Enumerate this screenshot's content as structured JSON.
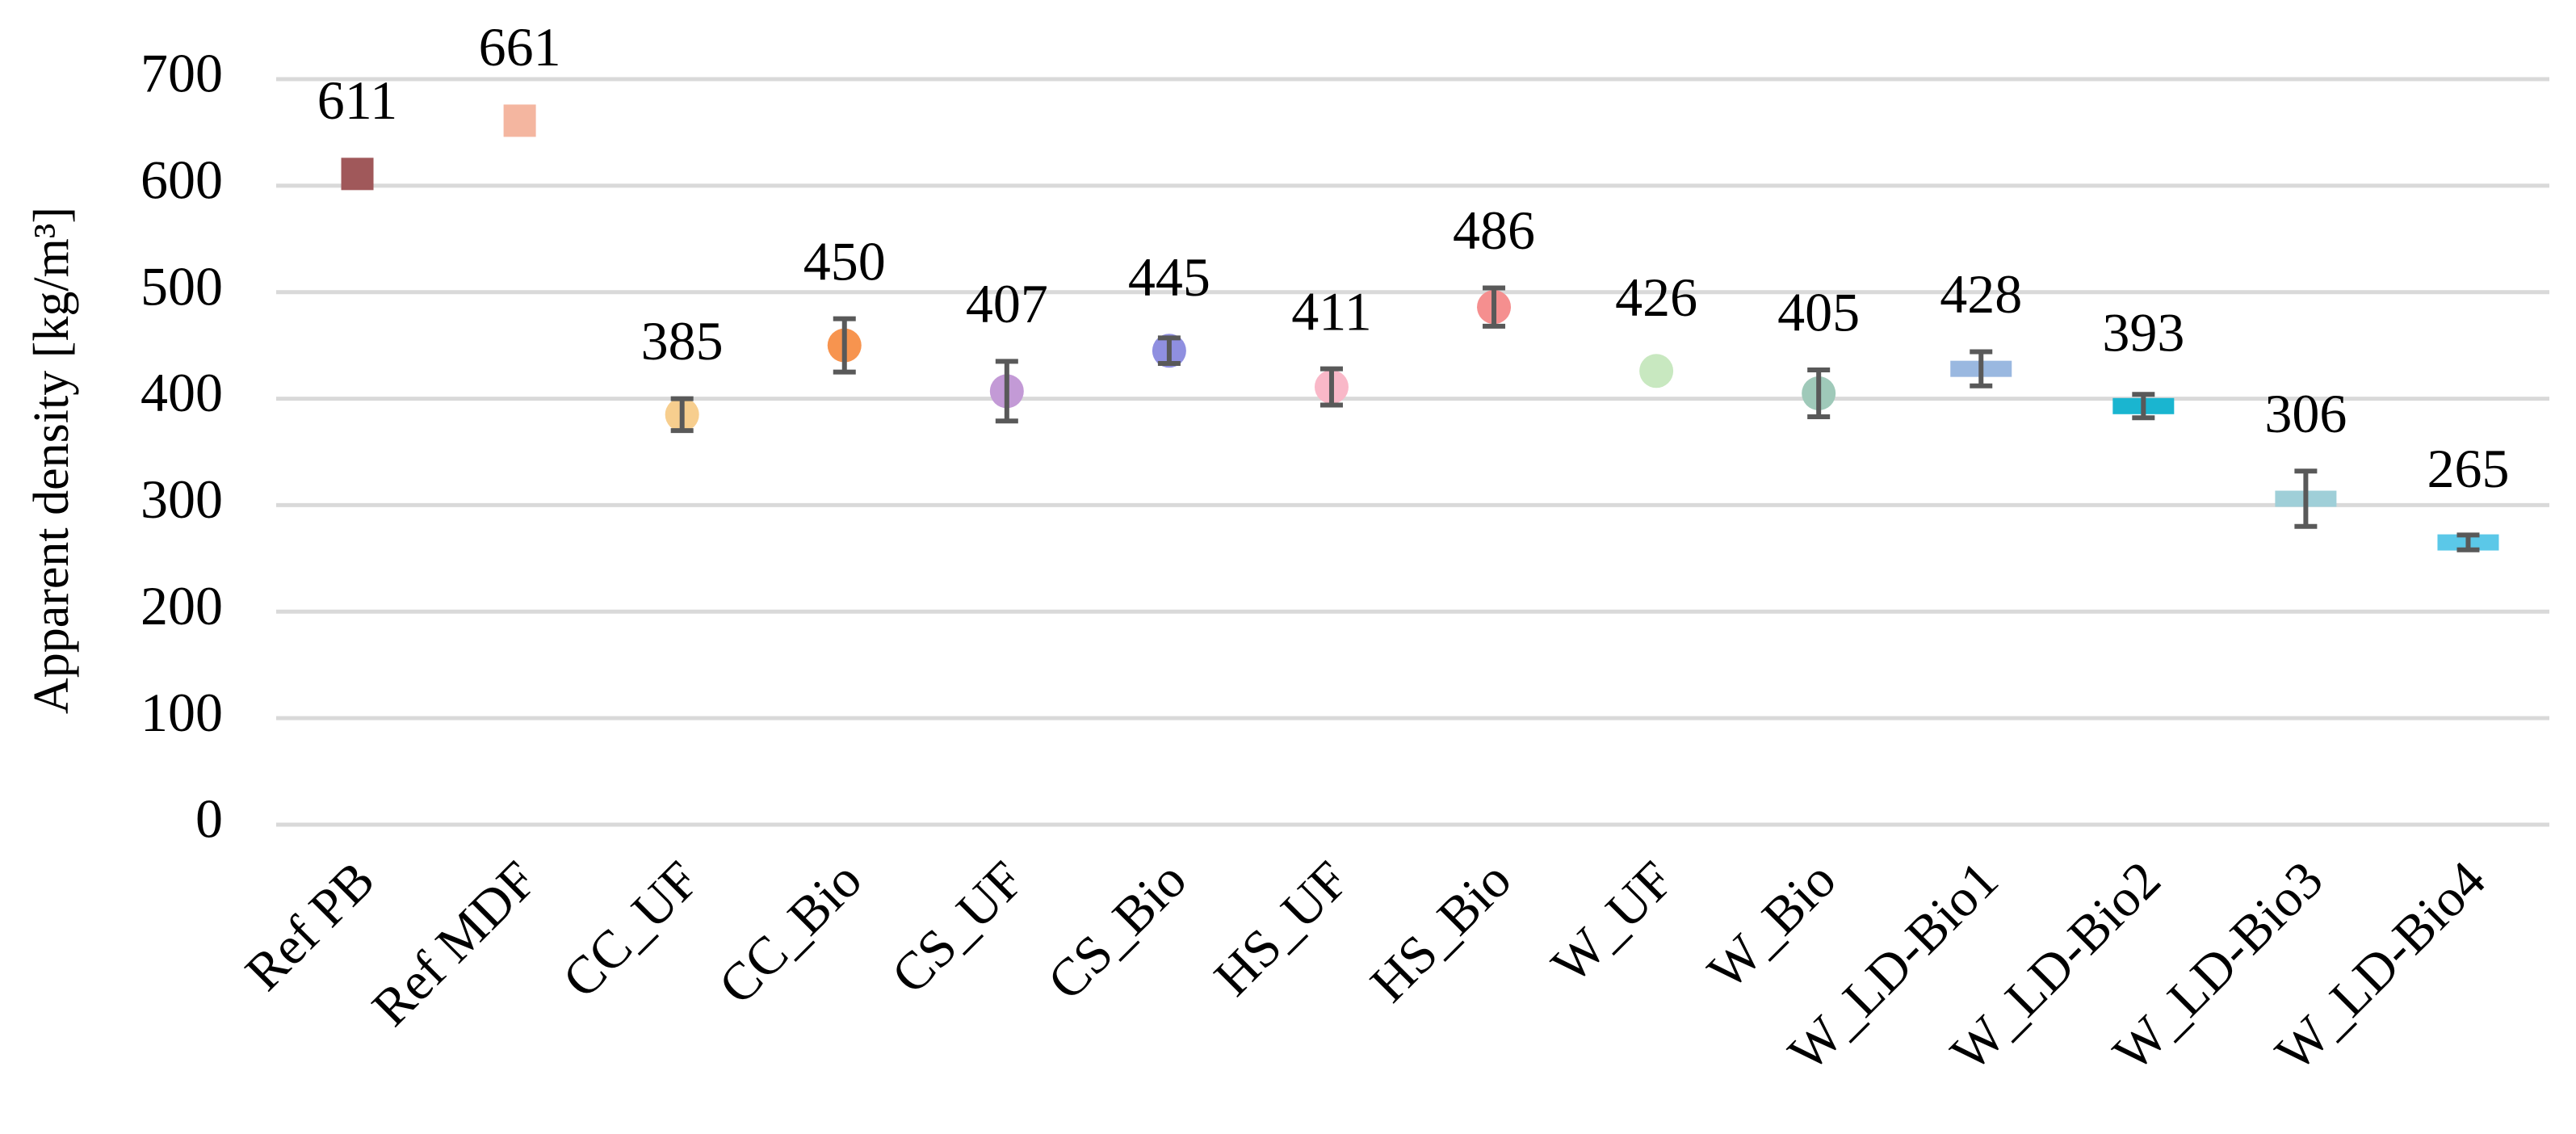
{
  "chart_data": {
    "type": "dot",
    "y_label": "Apparent density [kg/m³]",
    "categories": [
      "Ref PB",
      "Ref MDF",
      "CC_UF",
      "CC_Bio",
      "CS_UF",
      "CS_Bio",
      "HS_UF",
      "HS_Bio",
      "W_UF",
      "W_Bio",
      "W_LD-Bio1",
      "W_LD-Bio2",
      "W_LD-Bio3",
      "W_LD-Bio4"
    ],
    "values": [
      611,
      661,
      385,
      450,
      407,
      445,
      411,
      486,
      426,
      405,
      428,
      393,
      306,
      265
    ],
    "errors": [
      null,
      null,
      15,
      25,
      28,
      12,
      17,
      18,
      null,
      22,
      16,
      11,
      26,
      7
    ],
    "markers": [
      "square",
      "square",
      "circle",
      "circle",
      "circle",
      "circle",
      "circle",
      "circle",
      "circle",
      "circle",
      "dash",
      "dash",
      "dash",
      "dash"
    ],
    "colors": [
      "#a0585a",
      "#f4b6a0",
      "#f7ce8e",
      "#f7944f",
      "#c39ad6",
      "#8f8fe0",
      "#f9b8c8",
      "#f58f8f",
      "#c8e8c0",
      "#9fc9b9",
      "#9ab8e0",
      "#1ab5d0",
      "#9fcfd8",
      "#5bc8e8"
    ],
    "error_color": "#595959",
    "ylim": [
      0,
      700
    ],
    "yticks": [
      0,
      100,
      200,
      300,
      400,
      500,
      600,
      700
    ],
    "grid": true
  }
}
